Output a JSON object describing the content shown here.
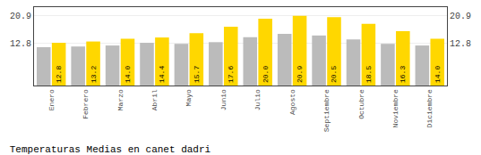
{
  "chart_data": {
    "type": "bar",
    "title": "Temperaturas Medias en canet dadri",
    "categories": [
      "Enero",
      "Febrero",
      "Marzo",
      "Abril",
      "Mayo",
      "Junio",
      "Julio",
      "Agosto",
      "Septiembre",
      "Octubre",
      "Noviembre",
      "Diciembre"
    ],
    "series": [
      {
        "color": "#BBBBBB",
        "values": [
          11.5,
          11.7,
          12.0,
          12.8,
          12.5,
          13.0,
          14.5,
          15.5,
          15.0,
          13.8,
          12.5,
          12.0
        ]
      },
      {
        "color": "#FFD700",
        "values": [
          12.8,
          13.2,
          14.0,
          14.4,
          15.7,
          17.6,
          20.0,
          20.9,
          20.5,
          18.5,
          16.3,
          14.0
        ],
        "data_labels": true,
        "value_labels": [
          "12.8",
          "13.2",
          "14.0",
          "14.4",
          "15.7",
          "17.6",
          "20.0",
          "20.9",
          "20.5",
          "18.5",
          "16.3",
          "14.0"
        ]
      }
    ],
    "ylim": [
      0,
      23.5
    ],
    "yticks": [
      12.8,
      20.9
    ],
    "y2lim": [
      0,
      23.5
    ],
    "y2ticks": [
      12.8,
      20.9
    ],
    "grid": true
  }
}
